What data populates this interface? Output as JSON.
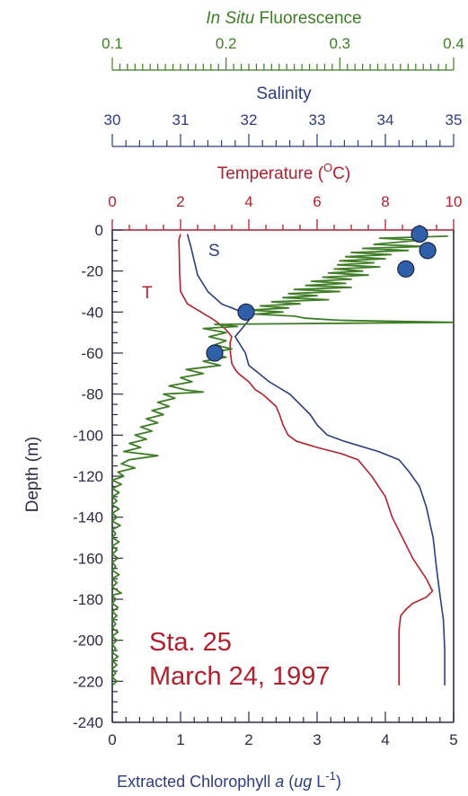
{
  "chart_data": {
    "type": "line",
    "colors": {
      "fluorescence": "#3f7d26",
      "salinity": "#2e3c80",
      "temperature": "#b2202e",
      "chlorophyll_fill": "#2f5fa8",
      "axis": "#2b2b45"
    },
    "axes": {
      "fluorescence": {
        "label_italic": "In Situ",
        "label_rest": " Fluorescence",
        "range": [
          0.1,
          0.4
        ],
        "ticks": [
          "0.1",
          "0.2",
          "0.3",
          "0.4"
        ]
      },
      "salinity": {
        "label": "Salinity",
        "range": [
          30,
          35
        ],
        "ticks": [
          "30",
          "31",
          "32",
          "33",
          "34",
          "35"
        ]
      },
      "temperature": {
        "label_pre": "Temperature (",
        "label_sup": "O",
        "label_post": "C)",
        "range": [
          0,
          10
        ],
        "ticks": [
          "0",
          "2",
          "4",
          "6",
          "8",
          "10"
        ]
      },
      "chlorophyll": {
        "label_pre": "Extracted Chlorophyll ",
        "label_italic": "a",
        "label_mid": " (",
        "label_italic2": "ug",
        "label_unit": " L",
        "label_sup": "-1",
        "label_post": ")",
        "range": [
          0,
          5
        ],
        "ticks": [
          "0",
          "1",
          "2",
          "3",
          "4",
          "5"
        ]
      },
      "depth": {
        "label": "Depth (m)",
        "range": [
          -240,
          0
        ],
        "ticks": [
          "0",
          "-20",
          "-40",
          "-60",
          "-80",
          "-100",
          "-120",
          "-140",
          "-160",
          "-180",
          "-200",
          "-220",
          "-240"
        ]
      }
    },
    "curve_labels": {
      "salinity": "S",
      "temperature": "T"
    },
    "station": {
      "line1": "Sta. 25",
      "line2": "March 24, 1997"
    },
    "series": [
      {
        "key": "temperature",
        "axis": "temperature",
        "points": [
          [
            2.0,
            -2
          ],
          [
            1.95,
            -5
          ],
          [
            1.96,
            -10
          ],
          [
            1.97,
            -20
          ],
          [
            2.0,
            -30
          ],
          [
            2.2,
            -36
          ],
          [
            2.6,
            -40
          ],
          [
            3.0,
            -44
          ],
          [
            3.3,
            -48
          ],
          [
            3.5,
            -52
          ],
          [
            3.45,
            -55
          ],
          [
            3.46,
            -60
          ],
          [
            3.5,
            -65
          ],
          [
            3.6,
            -68
          ],
          [
            3.7,
            -70
          ],
          [
            4.0,
            -74
          ],
          [
            4.2,
            -78
          ],
          [
            4.4,
            -80
          ],
          [
            4.6,
            -83
          ],
          [
            4.8,
            -86
          ],
          [
            4.9,
            -90
          ],
          [
            5.0,
            -95
          ],
          [
            5.15,
            -100
          ],
          [
            5.4,
            -103
          ],
          [
            6.0,
            -106
          ],
          [
            6.7,
            -109
          ],
          [
            7.2,
            -112
          ],
          [
            7.4,
            -116
          ],
          [
            7.6,
            -120
          ],
          [
            7.8,
            -125
          ],
          [
            8.0,
            -130
          ],
          [
            8.2,
            -140
          ],
          [
            8.5,
            -150
          ],
          [
            8.8,
            -160
          ],
          [
            9.2,
            -170
          ],
          [
            9.38,
            -176
          ],
          [
            9.2,
            -179
          ],
          [
            8.8,
            -182
          ],
          [
            8.6,
            -185
          ],
          [
            8.45,
            -188
          ],
          [
            8.4,
            -195
          ],
          [
            8.4,
            -222
          ]
        ]
      },
      {
        "key": "salinity",
        "axis": "salinity",
        "points": [
          [
            31.1,
            -2
          ],
          [
            31.15,
            -8
          ],
          [
            31.2,
            -15
          ],
          [
            31.25,
            -22
          ],
          [
            31.4,
            -30
          ],
          [
            31.6,
            -36
          ],
          [
            31.9,
            -40
          ],
          [
            32.0,
            -44
          ],
          [
            31.9,
            -48
          ],
          [
            31.8,
            -52
          ],
          [
            31.95,
            -60
          ],
          [
            32.0,
            -66
          ],
          [
            32.15,
            -70
          ],
          [
            32.3,
            -74
          ],
          [
            32.6,
            -80
          ],
          [
            32.75,
            -85
          ],
          [
            32.9,
            -90
          ],
          [
            33.0,
            -95
          ],
          [
            33.15,
            -100
          ],
          [
            33.4,
            -103
          ],
          [
            33.9,
            -108
          ],
          [
            34.2,
            -112
          ],
          [
            34.35,
            -118
          ],
          [
            34.5,
            -125
          ],
          [
            34.6,
            -135
          ],
          [
            34.7,
            -150
          ],
          [
            34.75,
            -165
          ],
          [
            34.8,
            -178
          ],
          [
            34.85,
            -190
          ],
          [
            34.87,
            -205
          ],
          [
            34.87,
            -222
          ]
        ]
      },
      {
        "key": "fluorescence",
        "axis": "fluorescence",
        "points": [
          [
            0.395,
            -3
          ],
          [
            0.335,
            -4
          ],
          [
            0.37,
            -5
          ],
          [
            0.33,
            -7
          ],
          [
            0.375,
            -8
          ],
          [
            0.32,
            -9
          ],
          [
            0.36,
            -10
          ],
          [
            0.31,
            -11
          ],
          [
            0.345,
            -12
          ],
          [
            0.305,
            -13
          ],
          [
            0.34,
            -14
          ],
          [
            0.3,
            -15
          ],
          [
            0.33,
            -16
          ],
          [
            0.298,
            -17
          ],
          [
            0.335,
            -18
          ],
          [
            0.295,
            -19
          ],
          [
            0.32,
            -20
          ],
          [
            0.29,
            -21
          ],
          [
            0.325,
            -22
          ],
          [
            0.285,
            -23
          ],
          [
            0.31,
            -24
          ],
          [
            0.275,
            -25
          ],
          [
            0.305,
            -26
          ],
          [
            0.27,
            -27
          ],
          [
            0.31,
            -28
          ],
          [
            0.26,
            -29
          ],
          [
            0.3,
            -30
          ],
          [
            0.255,
            -31
          ],
          [
            0.28,
            -32
          ],
          [
            0.25,
            -33
          ],
          [
            0.29,
            -34
          ],
          [
            0.24,
            -35
          ],
          [
            0.265,
            -36
          ],
          [
            0.23,
            -37
          ],
          [
            0.255,
            -38
          ],
          [
            0.22,
            -39
          ],
          [
            0.25,
            -40
          ],
          [
            0.225,
            -41
          ],
          [
            0.26,
            -42
          ],
          [
            0.27,
            -43
          ],
          [
            0.3,
            -44
          ],
          [
            0.4,
            -45
          ],
          [
            0.19,
            -46
          ],
          [
            0.21,
            -47
          ],
          [
            0.18,
            -48
          ],
          [
            0.2,
            -50
          ],
          [
            0.185,
            -52
          ],
          [
            0.2,
            -54
          ],
          [
            0.19,
            -56
          ],
          [
            0.205,
            -58
          ],
          [
            0.185,
            -60
          ],
          [
            0.2,
            -62
          ],
          [
            0.18,
            -64
          ],
          [
            0.195,
            -66
          ],
          [
            0.165,
            -68
          ],
          [
            0.18,
            -70
          ],
          [
            0.16,
            -72
          ],
          [
            0.17,
            -74
          ],
          [
            0.15,
            -76
          ],
          [
            0.165,
            -78
          ],
          [
            0.18,
            -79
          ],
          [
            0.145,
            -80
          ],
          [
            0.155,
            -82
          ],
          [
            0.14,
            -84
          ],
          [
            0.15,
            -86
          ],
          [
            0.135,
            -88
          ],
          [
            0.145,
            -90
          ],
          [
            0.13,
            -92
          ],
          [
            0.14,
            -94
          ],
          [
            0.125,
            -96
          ],
          [
            0.135,
            -98
          ],
          [
            0.12,
            -100
          ],
          [
            0.13,
            -102
          ],
          [
            0.115,
            -104
          ],
          [
            0.125,
            -106
          ],
          [
            0.11,
            -108
          ],
          [
            0.14,
            -110
          ],
          [
            0.115,
            -112
          ],
          [
            0.108,
            -114
          ],
          [
            0.12,
            -116
          ],
          [
            0.105,
            -118
          ],
          [
            0.11,
            -120
          ],
          [
            0.1,
            -122
          ],
          [
            0.108,
            -124
          ],
          [
            0.1,
            -126
          ],
          [
            0.106,
            -128
          ],
          [
            0.1,
            -130
          ],
          [
            0.104,
            -132
          ],
          [
            0.1,
            -134
          ],
          [
            0.106,
            -136
          ],
          [
            0.1,
            -138
          ],
          [
            0.104,
            -140
          ],
          [
            0.1,
            -142
          ],
          [
            0.107,
            -144
          ],
          [
            0.1,
            -146
          ],
          [
            0.103,
            -148
          ],
          [
            0.1,
            -150
          ],
          [
            0.106,
            -152
          ],
          [
            0.1,
            -154
          ],
          [
            0.104,
            -156
          ],
          [
            0.1,
            -158
          ],
          [
            0.105,
            -160
          ],
          [
            0.1,
            -162
          ],
          [
            0.103,
            -164
          ],
          [
            0.1,
            -166
          ],
          [
            0.106,
            -168
          ],
          [
            0.1,
            -170
          ],
          [
            0.104,
            -172
          ],
          [
            0.1,
            -174
          ],
          [
            0.105,
            -176
          ],
          [
            0.108,
            -177
          ],
          [
            0.1,
            -178
          ],
          [
            0.103,
            -180
          ],
          [
            0.1,
            -182
          ],
          [
            0.105,
            -184
          ],
          [
            0.1,
            -186
          ],
          [
            0.104,
            -188
          ],
          [
            0.1,
            -190
          ],
          [
            0.103,
            -192
          ],
          [
            0.1,
            -194
          ],
          [
            0.105,
            -196
          ],
          [
            0.1,
            -198
          ],
          [
            0.104,
            -200
          ],
          [
            0.1,
            -202
          ],
          [
            0.103,
            -204
          ],
          [
            0.1,
            -206
          ],
          [
            0.105,
            -208
          ],
          [
            0.1,
            -210
          ],
          [
            0.104,
            -212
          ],
          [
            0.1,
            -214
          ],
          [
            0.103,
            -216
          ],
          [
            0.1,
            -218
          ],
          [
            0.104,
            -220
          ],
          [
            0.1,
            -222
          ]
        ]
      },
      {
        "key": "chlorophyll",
        "axis": "chlorophyll",
        "type": "scatter",
        "points": [
          [
            4.5,
            -2
          ],
          [
            4.62,
            -10
          ],
          [
            4.3,
            -19
          ],
          [
            1.96,
            -40
          ],
          [
            1.5,
            -60
          ]
        ]
      }
    ]
  }
}
